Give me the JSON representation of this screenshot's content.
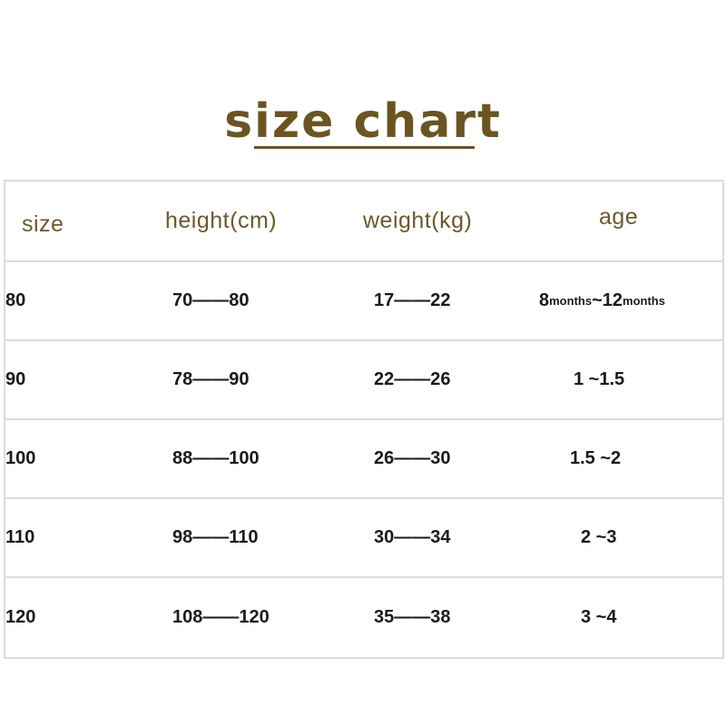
{
  "title": "size chart",
  "colors": {
    "title": "#6b5420",
    "header_text": "#6b5a2a",
    "border": "#dcdcdc"
  },
  "headers": [
    "size",
    "height(cm)",
    "weight(kg)",
    "age"
  ],
  "rows": [
    {
      "size": "80",
      "height": "70——80",
      "weight": "17——22",
      "age": {
        "a": "8",
        "a_unit": "months",
        "sep": "~",
        "b": "12",
        "b_unit": "months"
      }
    },
    {
      "size": "90",
      "height": "78——90",
      "weight": "22——26",
      "age": "1 ~1.5"
    },
    {
      "size": "100",
      "height": "88——100",
      "weight": "26——30",
      "age": "1.5 ~2"
    },
    {
      "size": "110",
      "height": "98——110",
      "weight": "30——34",
      "age": "2 ~3"
    },
    {
      "size": "120",
      "height": "108——120",
      "weight": "35——38",
      "age": "3 ~4"
    }
  ]
}
